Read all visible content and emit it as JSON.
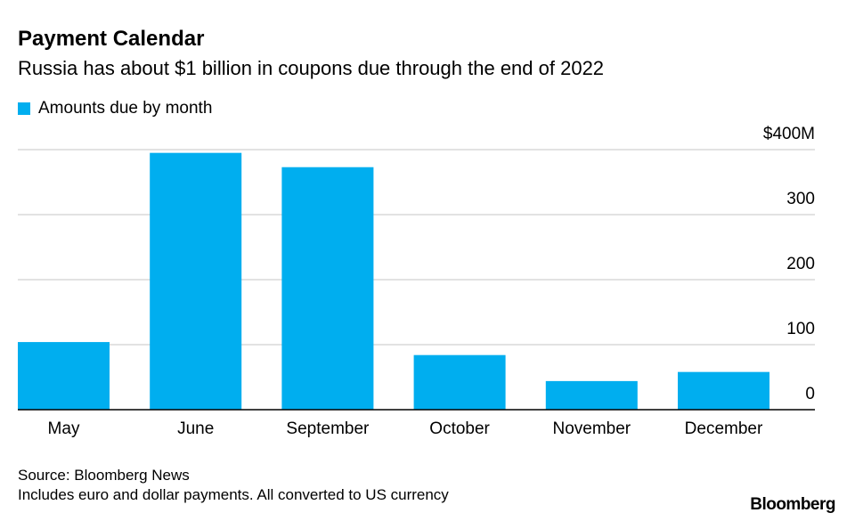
{
  "chart_data": {
    "type": "bar",
    "title": "Payment Calendar",
    "subtitle": "Russia has about $1 billion in coupons due through the end of 2022",
    "legend": [
      "Amounts due by month"
    ],
    "categories": [
      "May",
      "June",
      "September",
      "October",
      "November",
      "December"
    ],
    "values": [
      104,
      395,
      373,
      84,
      44,
      58
    ],
    "ylim": [
      0,
      400
    ],
    "yticks": [
      0,
      100,
      200,
      300,
      400
    ],
    "ytick_labels": [
      "0",
      "100",
      "200",
      "300",
      "$400M"
    ],
    "xlabel": "",
    "ylabel": "",
    "grid": true,
    "color": "#00aeef"
  },
  "footer": {
    "source": "Source: Bloomberg News",
    "note": "Includes euro and dollar payments. All converted to US currency",
    "logo": "Bloomberg"
  }
}
